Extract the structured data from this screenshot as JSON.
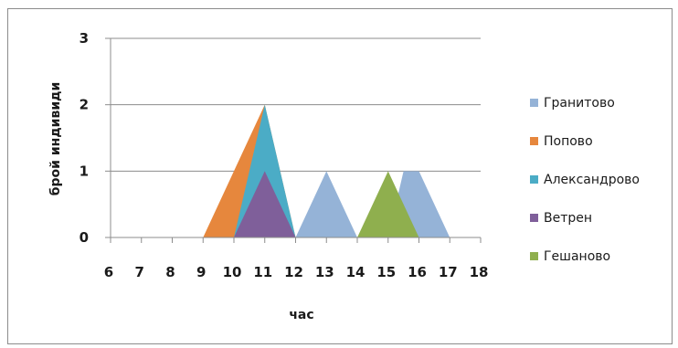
{
  "chart_data": {
    "type": "area",
    "title": "",
    "xlabel": "час",
    "ylabel": "брой индивиди",
    "x": [
      6,
      7,
      8,
      9,
      10,
      11,
      12,
      13,
      14,
      15,
      16,
      17,
      18
    ],
    "xlim": [
      6,
      18
    ],
    "ylim": [
      0,
      3
    ],
    "yticks": [
      0,
      1,
      2,
      3
    ],
    "grid": true,
    "legend_position": "right",
    "series": [
      {
        "name": "Гранитово",
        "color": "#95B3D7",
        "points": [
          [
            12,
            0
          ],
          [
            13,
            1
          ],
          [
            14,
            0
          ],
          [
            15,
            0
          ],
          [
            15.5,
            1
          ],
          [
            16,
            1
          ],
          [
            17,
            0
          ]
        ]
      },
      {
        "name": "Попово",
        "color": "#E6873D",
        "points": [
          [
            9,
            0
          ],
          [
            11,
            2
          ],
          [
            12,
            0
          ]
        ]
      },
      {
        "name": "Александрово",
        "color": "#4BACC6",
        "points": [
          [
            10,
            0
          ],
          [
            11,
            2
          ],
          [
            12,
            0
          ]
        ]
      },
      {
        "name": "Ветрен",
        "color": "#7F5F9A",
        "points": [
          [
            10,
            0
          ],
          [
            11,
            1
          ],
          [
            12,
            0
          ]
        ]
      },
      {
        "name": "Гешаново",
        "color": "#8FAF4E",
        "points": [
          [
            14,
            0
          ],
          [
            15,
            1
          ],
          [
            16,
            0
          ]
        ]
      }
    ]
  }
}
